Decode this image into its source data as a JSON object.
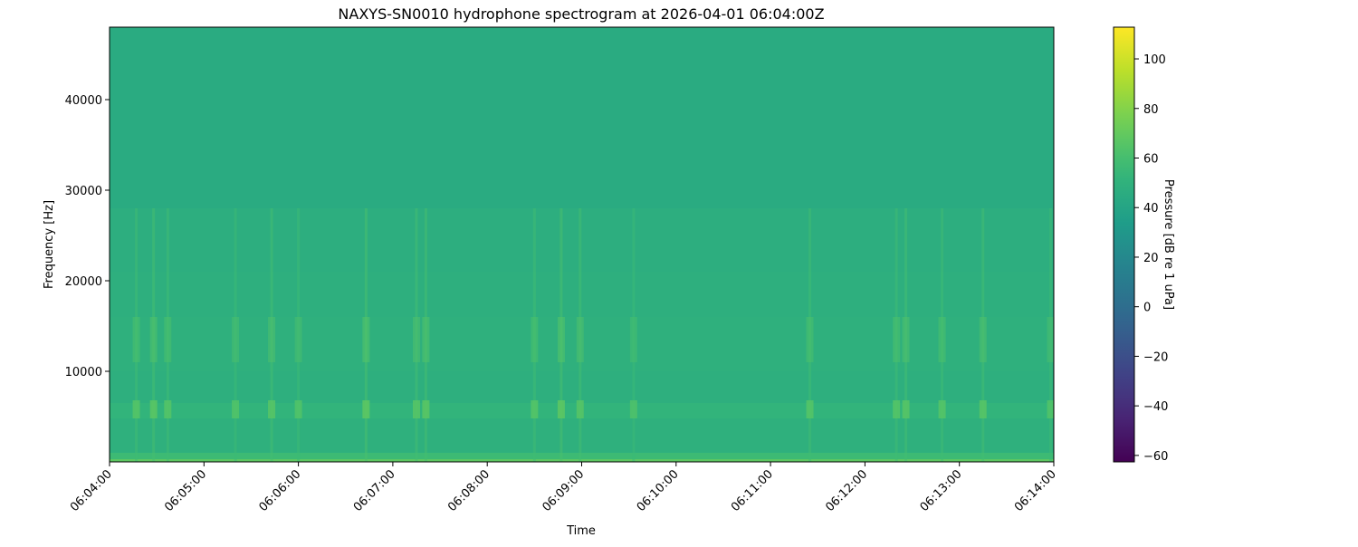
{
  "chart_data": {
    "type": "heatmap",
    "title": "NAXYS-SN0010 hydrophone spectrogram at 2026-04-01 06:04:00Z",
    "xlabel": "Time",
    "ylabel": "Frequency [Hz]",
    "colorbar_label": "Pressure [dB re 1 uPa]",
    "colormap": "viridis",
    "xlim": [
      "06:04:00",
      "06:14:00"
    ],
    "ylim": [
      0,
      48000
    ],
    "clim": [
      -62.6,
      112.8
    ],
    "x_ticks": [
      "06:04:00",
      "06:05:00",
      "06:06:00",
      "06:07:00",
      "06:08:00",
      "06:09:00",
      "06:10:00",
      "06:11:00",
      "06:12:00",
      "06:13:00",
      "06:14:00"
    ],
    "y_ticks": [
      10000,
      20000,
      30000,
      40000
    ],
    "colorbar_ticks": [
      -60,
      -40,
      -20,
      0,
      20,
      40,
      60,
      80,
      100
    ],
    "bands": [
      {
        "f_low": 0,
        "f_high": 300,
        "db": 68
      },
      {
        "f_low": 300,
        "f_high": 1000,
        "db": 57
      },
      {
        "f_low": 1000,
        "f_high": 4800,
        "db": 49
      },
      {
        "f_low": 4800,
        "f_high": 6500,
        "db": 52
      },
      {
        "f_low": 6500,
        "f_high": 10000,
        "db": 48
      },
      {
        "f_low": 10000,
        "f_high": 16000,
        "db": 49
      },
      {
        "f_low": 16000,
        "f_high": 21000,
        "db": 48
      },
      {
        "f_low": 21000,
        "f_high": 28000,
        "db": 47
      },
      {
        "f_low": 28000,
        "f_high": 48000,
        "db": 45
      }
    ],
    "bursts": [
      {
        "time": "06:04:17",
        "db": 66
      },
      {
        "time": "06:04:28",
        "db": 68
      },
      {
        "time": "06:04:37",
        "db": 66
      },
      {
        "time": "06:05:20",
        "db": 65
      },
      {
        "time": "06:05:43",
        "db": 67
      },
      {
        "time": "06:06:00",
        "db": 65
      },
      {
        "time": "06:06:43",
        "db": 69
      },
      {
        "time": "06:07:15",
        "db": 67
      },
      {
        "time": "06:07:21",
        "db": 68
      },
      {
        "time": "06:08:30",
        "db": 66
      },
      {
        "time": "06:08:47",
        "db": 69
      },
      {
        "time": "06:08:59",
        "db": 67
      },
      {
        "time": "06:09:33",
        "db": 64
      },
      {
        "time": "06:11:25",
        "db": 66
      },
      {
        "time": "06:12:20",
        "db": 66
      },
      {
        "time": "06:12:26",
        "db": 67
      },
      {
        "time": "06:12:49",
        "db": 66
      },
      {
        "time": "06:13:15",
        "db": 67
      },
      {
        "time": "06:13:58",
        "db": 65
      }
    ]
  }
}
